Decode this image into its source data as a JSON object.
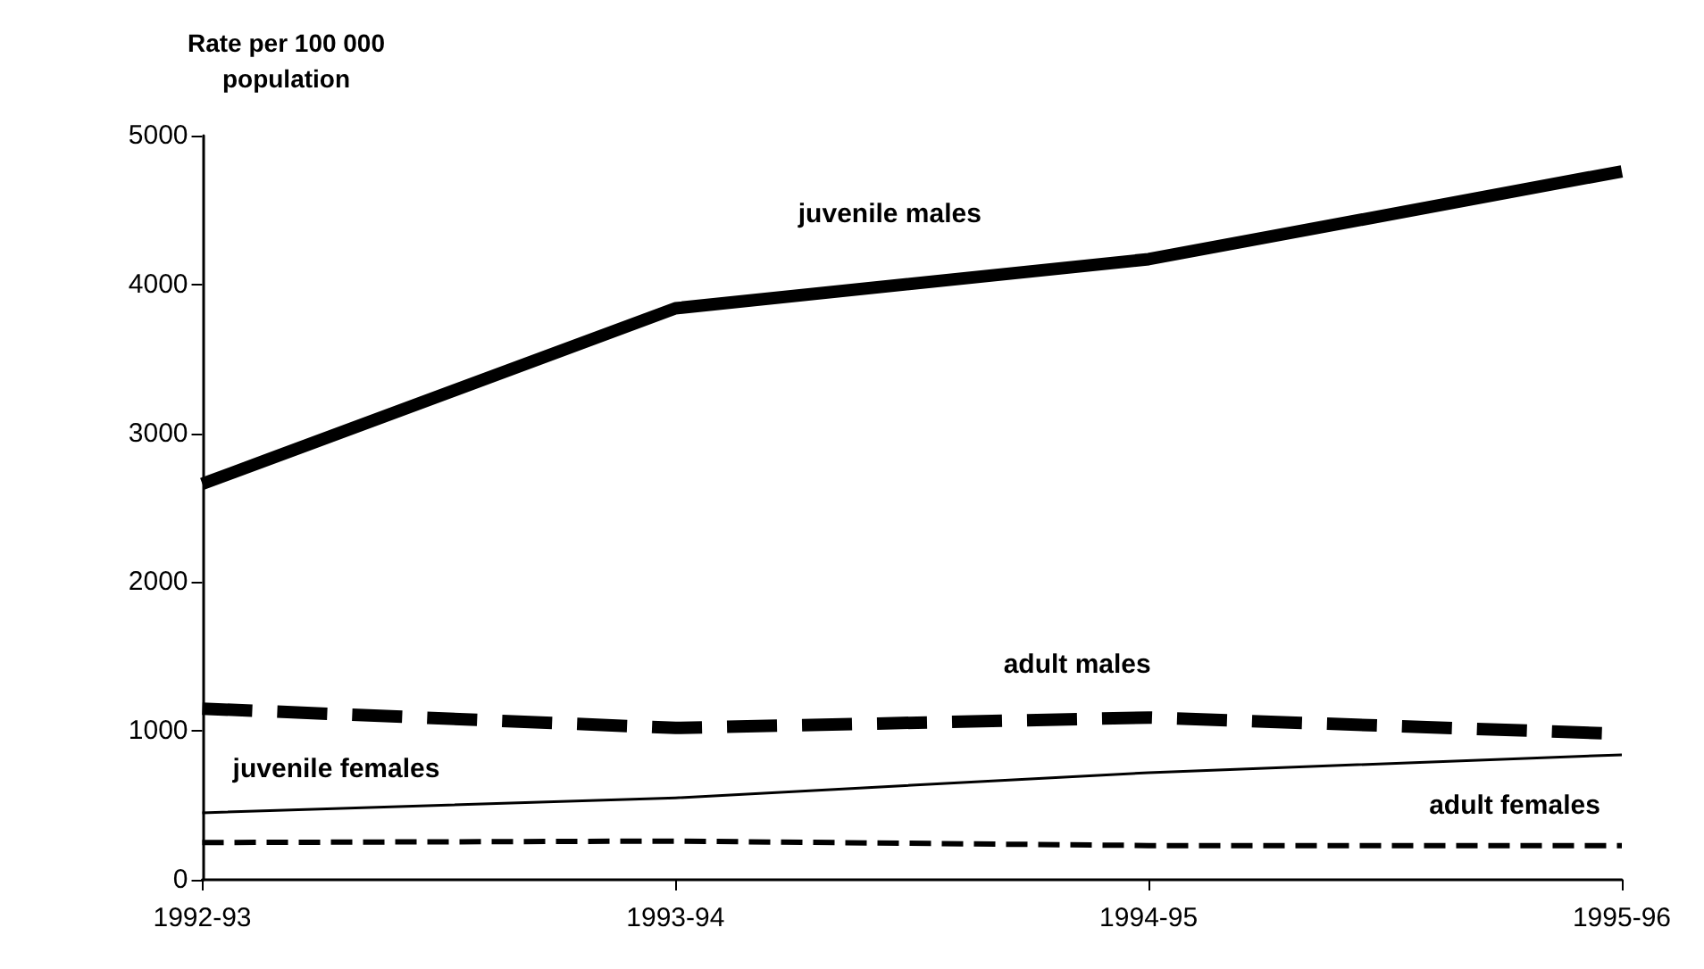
{
  "chart_data": {
    "type": "line",
    "ylabel": "Rate per 100 000\npopulation",
    "categories": [
      "1992-93",
      "1993-94",
      "1994-95",
      "1995-96"
    ],
    "ylim": [
      0,
      5000
    ],
    "yticks": [
      0,
      1000,
      2000,
      3000,
      4000,
      5000
    ],
    "grid": false,
    "legend": false,
    "marker": "none",
    "series": [
      {
        "name": "juvenile males",
        "color": "#000000",
        "line_style": "solid",
        "values": [
          2660,
          3840,
          4170,
          4760
        ]
      },
      {
        "name": "adult males",
        "color": "#000000",
        "line_style": "dashed",
        "values": [
          1150,
          1020,
          1090,
          980
        ]
      },
      {
        "name": "juvenile females",
        "color": "#000000",
        "line_style": "solid",
        "values": [
          450,
          550,
          720,
          840
        ]
      },
      {
        "name": "adult females",
        "color": "#000000",
        "line_style": "dashed",
        "values": [
          250,
          260,
          230,
          230
        ]
      }
    ]
  }
}
